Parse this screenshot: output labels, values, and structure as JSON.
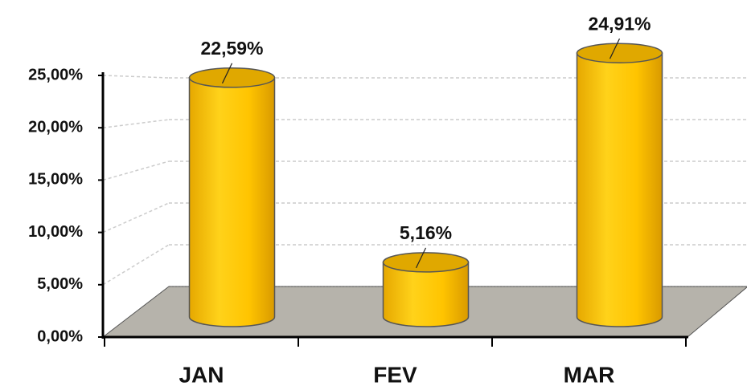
{
  "chart_data": {
    "type": "bar",
    "categories": [
      "JAN",
      "FEV",
      "MAR"
    ],
    "values": [
      22.59,
      5.16,
      24.91
    ],
    "value_labels": [
      "22,59%",
      "5,16%",
      "24,91%"
    ],
    "color": "#ffc000",
    "ylim": [
      0,
      25
    ],
    "yticks": [
      {
        "value": 0,
        "label": "0,00%"
      },
      {
        "value": 5,
        "label": "5,00%"
      },
      {
        "value": 10,
        "label": "10,00%"
      },
      {
        "value": 15,
        "label": "15,00%"
      },
      {
        "value": 20,
        "label": "20,00%"
      },
      {
        "value": 25,
        "label": "25,00%"
      }
    ],
    "grid": true
  }
}
